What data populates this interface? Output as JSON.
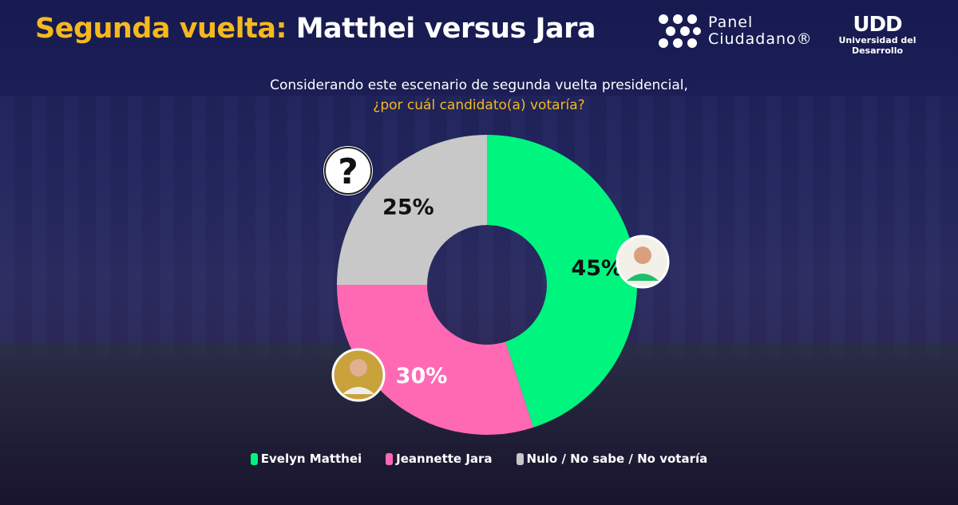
{
  "header": {
    "title_highlight": "Segunda vuelta:",
    "title_rest": " Matthei versus Jara",
    "logo_panel_line1": "Panel",
    "logo_panel_line2": "Ciudadano®",
    "logo_udd_mark": "UDD",
    "logo_udd_text": "Universidad del Desarrollo"
  },
  "chart_data": {
    "type": "pie",
    "title": "Considerando este escenario de segunda vuelta presidencial,",
    "subtitle": "¿por cuál candidato(a) votaría?",
    "categories": [
      "Evelyn Matthei",
      "Jeannette Jara",
      "Nulo / No sabe / No votaría"
    ],
    "values": [
      45,
      30,
      25
    ],
    "labels": [
      "45%",
      "30%",
      "25%"
    ],
    "colors": [
      "#00f57f",
      "#ff69b4",
      "#c8c8c8"
    ],
    "donut": true,
    "legend_position": "bottom"
  },
  "question_icon": "?"
}
